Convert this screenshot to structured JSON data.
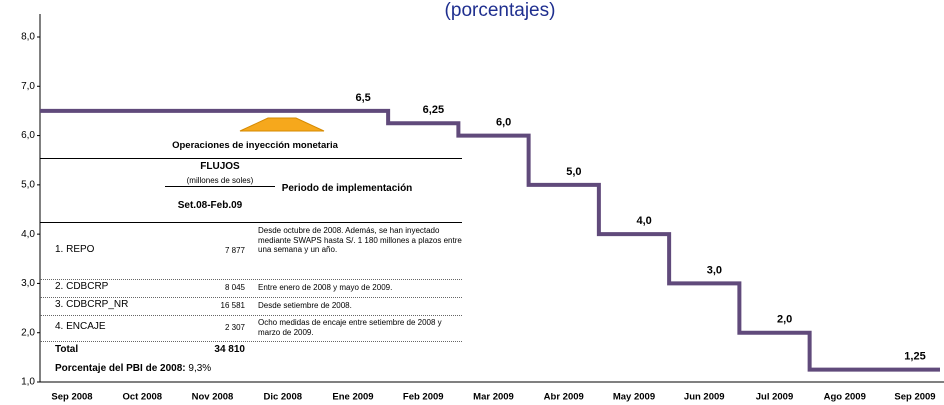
{
  "chart_data": {
    "type": "step",
    "subtitle": "(porcentajes)",
    "categories": [
      "Sep 2008",
      "Oct 2008",
      "Nov 2008",
      "Dic 2008",
      "Ene 2009",
      "Feb 2009",
      "Mar 2009",
      "Abr 2009",
      "May 2009",
      "Jun 2009",
      "Jul 2009",
      "Ago 2009",
      "Sep 2009"
    ],
    "values": [
      6.5,
      6.5,
      6.5,
      6.5,
      6.5,
      6.25,
      6.0,
      5.0,
      4.0,
      3.0,
      2.0,
      1.25,
      1.25
    ],
    "value_labels": [
      null,
      null,
      null,
      null,
      "6,5",
      "6,25",
      "6,0",
      "5,0",
      "4,0",
      "3,0",
      "2,0",
      null,
      "1,25"
    ],
    "color": "#604a7b",
    "ylim": [
      1,
      8
    ],
    "yticks": [
      {
        "value": 1,
        "label": "1,0"
      },
      {
        "value": 2,
        "label": "2,0"
      },
      {
        "value": 3,
        "label": "3,0"
      },
      {
        "value": 4,
        "label": "4,0"
      },
      {
        "value": 5,
        "label": "5,0"
      },
      {
        "value": 6,
        "label": "6,0"
      },
      {
        "value": 7,
        "label": "7,0"
      },
      {
        "value": 8,
        "label": "8,0"
      }
    ],
    "grid": false
  },
  "inset": {
    "title": "Operaciones de inyección monetaria",
    "header": {
      "flows": "FLUJOS",
      "units": "(millones de soles)",
      "period": "Set.08-Feb.09",
      "implementation": "Periodo de implementación"
    },
    "rows": [
      [
        "1. REPO",
        "7 877",
        "Desde octubre de 2008. Además, se han inyectado mediante SWAPS hasta S/. 1 180 millones a plazos entre una semana y un año."
      ],
      [
        "2. CDBCRP",
        "8 045",
        "Entre enero de 2008 y mayo de 2009."
      ],
      [
        "3. CDBCRP_NR",
        "16 581",
        "Desde setiembre de 2008."
      ],
      [
        "4. ENCAJE",
        "2 307",
        "Ocho medidas de encaje entre setiembre de 2008 y marzo de 2009."
      ]
    ],
    "total": [
      "Total",
      "34 810"
    ],
    "footer": {
      "label": "Porcentaje del PBI de 2008:",
      "value": "9,3%"
    }
  }
}
